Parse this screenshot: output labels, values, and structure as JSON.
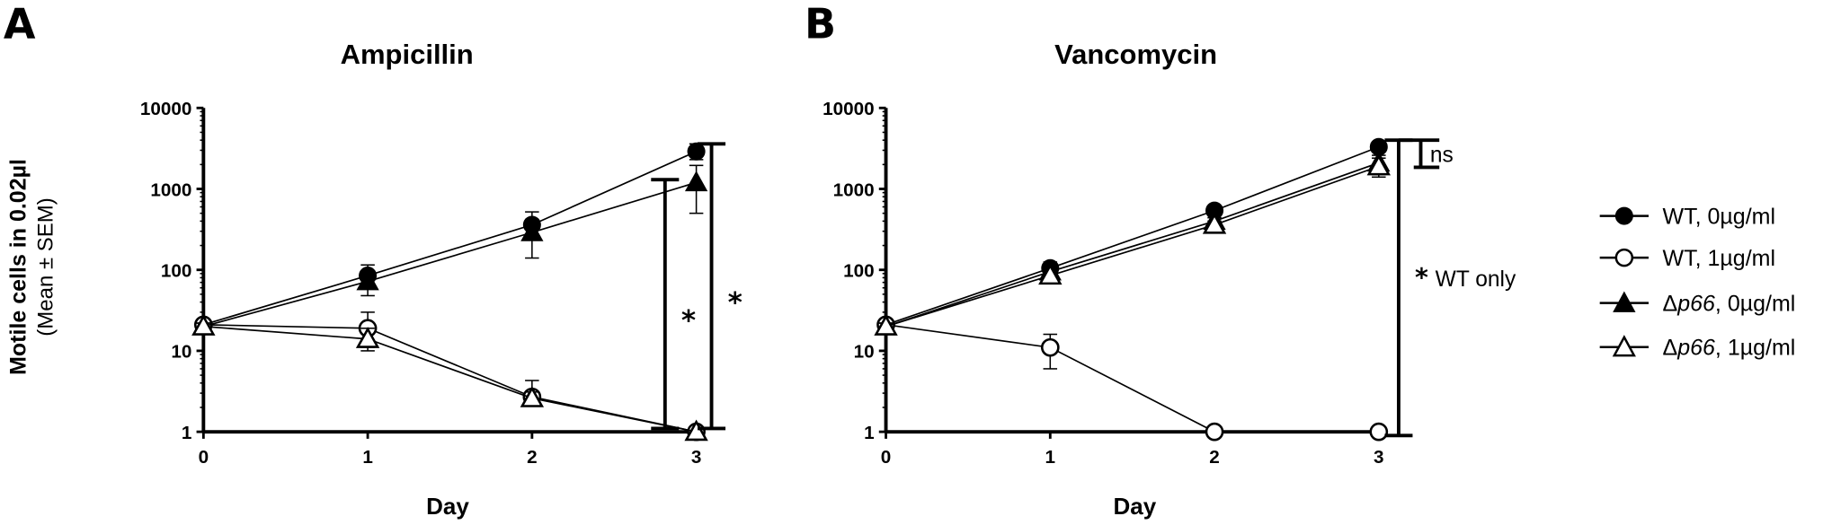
{
  "panel_letters": [
    "A",
    "B"
  ],
  "ytitle_line1": "Motile cells in 0.02µl",
  "ytitle_line2": "(Mean ± SEM)",
  "legend": [
    {
      "text": "WT, 0µg/ml",
      "strain": "WT",
      "dose": ", 0µg/ml",
      "marker": "filled-circle"
    },
    {
      "text": "WT, 1µg/ml",
      "strain": "WT",
      "dose": ", 1µg/ml",
      "marker": "open-circle"
    },
    {
      "text": "Δp66, 0µg/ml",
      "strain_prefix": "Δ",
      "strain_italic": "p66",
      "dose": ", 0µg/ml",
      "marker": "filled-triangle"
    },
    {
      "text": "Δp66, 1µg/ml",
      "strain_prefix": "Δ",
      "strain_italic": "p66",
      "dose": ", 1µg/ml",
      "marker": "open-triangle"
    }
  ],
  "chart_data": [
    {
      "type": "line",
      "panel": "A",
      "title": "Ampicillin",
      "xlabel": "Day",
      "ylabel": "Motile cells in 0.02µl (Mean ± SEM)",
      "yscale": "log",
      "ylim": [
        1,
        10000
      ],
      "yticks": [
        1,
        10,
        100,
        1000,
        10000
      ],
      "ytick_labels": [
        "1",
        "10",
        "100",
        "1000",
        "10000"
      ],
      "x": [
        0,
        1,
        2,
        3
      ],
      "xtick_labels": [
        "0",
        "1",
        "2",
        "3"
      ],
      "series": [
        {
          "name": "WT, 0µg/ml",
          "marker": "filled-circle",
          "values": [
            21,
            85,
            360,
            2900
          ],
          "err_low": [
            19,
            65,
            260,
            2300
          ],
          "err_high": [
            23,
            115,
            520,
            3600
          ]
        },
        {
          "name": "WT, 1µg/ml",
          "marker": "open-circle",
          "values": [
            21,
            19,
            2.7,
            1
          ],
          "err_low": [
            19,
            11,
            2.2,
            1
          ],
          "err_high": [
            23,
            30,
            4.3,
            1
          ]
        },
        {
          "name": "Δp66, 0µg/ml",
          "marker": "filled-triangle",
          "values": [
            20,
            72,
            290,
            1200
          ],
          "err_low": [
            18,
            48,
            140,
            500
          ],
          "err_high": [
            22,
            95,
            420,
            1950
          ]
        },
        {
          "name": "Δp66, 1µg/ml",
          "marker": "open-triangle",
          "values": [
            20,
            14,
            2.6,
            1
          ],
          "err_low": [
            18,
            10,
            2.2,
            1
          ],
          "err_high": [
            22,
            19,
            3.1,
            1
          ]
        }
      ],
      "annotations": [
        {
          "type": "bracket",
          "text": "*",
          "from": 1.1,
          "to": 1300
        },
        {
          "type": "bracket",
          "text": "*",
          "from": 1.1,
          "to": 3600
        }
      ]
    },
    {
      "type": "line",
      "panel": "B",
      "title": "Vancomycin",
      "xlabel": "Day",
      "ylabel": "",
      "yscale": "log",
      "ylim": [
        1,
        10000
      ],
      "yticks": [
        1,
        10,
        100,
        1000,
        10000
      ],
      "ytick_labels": [
        "1",
        "10",
        "100",
        "1000",
        "10000"
      ],
      "x": [
        0,
        1,
        2,
        3
      ],
      "xtick_labels": [
        "0",
        "1",
        "2",
        "3"
      ],
      "series": [
        {
          "name": "WT, 0µg/ml",
          "marker": "filled-circle",
          "values": [
            21,
            105,
            540,
            3300
          ],
          "err_low": [
            19,
            90,
            500,
            3100
          ],
          "err_high": [
            23,
            125,
            590,
            3500
          ]
        },
        {
          "name": "WT, 1µg/ml",
          "marker": "open-circle",
          "values": [
            21,
            11,
            1,
            1
          ],
          "err_low": [
            19,
            6,
            1,
            1
          ],
          "err_high": [
            23,
            16,
            1,
            1
          ]
        },
        {
          "name": "Δp66, 0µg/ml",
          "marker": "filled-triangle",
          "values": [
            20,
            95,
            400,
            2100
          ],
          "err_low": [
            18,
            82,
            360,
            1500
          ],
          "err_high": [
            22,
            110,
            440,
            2600
          ]
        },
        {
          "name": "Δp66, 1µg/ml",
          "marker": "open-triangle",
          "values": [
            20,
            85,
            360,
            1900
          ],
          "err_low": [
            18,
            75,
            320,
            1400
          ],
          "err_high": [
            22,
            95,
            400,
            2400
          ]
        }
      ],
      "annotations": [
        {
          "type": "bracket",
          "text": "ns",
          "from": 1850,
          "to": 4000
        },
        {
          "type": "bracket",
          "text": "WT only",
          "star": "*",
          "from": 0.9,
          "to": 4000
        }
      ]
    }
  ]
}
